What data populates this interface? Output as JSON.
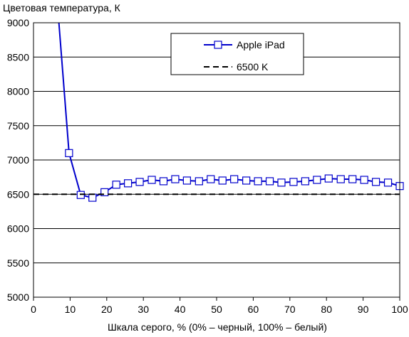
{
  "chart_data": {
    "type": "line",
    "ylabel": "Цветовая температура, К",
    "xlabel": "Шкала серого, % (0% – черный, 100% – белый)",
    "xlim": [
      0,
      100
    ],
    "ylim": [
      5000,
      9000
    ],
    "x_ticks": [
      0,
      10,
      20,
      30,
      40,
      50,
      60,
      70,
      80,
      90,
      100
    ],
    "y_ticks": [
      5000,
      5500,
      6000,
      6500,
      7000,
      7500,
      8000,
      8500,
      9000
    ],
    "grid": "horizontal",
    "legend_position": "top-right",
    "series": [
      {
        "name": "Apple iPad",
        "color": "#0000cc",
        "marker": "square",
        "x": [
          6.5,
          9.7,
          12.9,
          16.1,
          19.4,
          22.6,
          25.8,
          29.0,
          32.3,
          35.5,
          38.7,
          41.9,
          45.2,
          48.4,
          51.6,
          54.8,
          58.1,
          61.3,
          64.5,
          67.7,
          71.0,
          74.2,
          77.4,
          80.6,
          83.9,
          87.1,
          90.3,
          93.5,
          96.8,
          100.0
        ],
        "y": [
          9300,
          7100,
          6490,
          6450,
          6530,
          6640,
          6660,
          6680,
          6710,
          6690,
          6720,
          6700,
          6690,
          6720,
          6700,
          6720,
          6700,
          6690,
          6690,
          6670,
          6680,
          6690,
          6710,
          6730,
          6720,
          6720,
          6710,
          6680,
          6670,
          6620
        ]
      },
      {
        "name": "6500 K",
        "color": "#000000",
        "style": "dashed",
        "x": [
          0,
          100
        ],
        "y": [
          6500,
          6500
        ]
      }
    ]
  }
}
